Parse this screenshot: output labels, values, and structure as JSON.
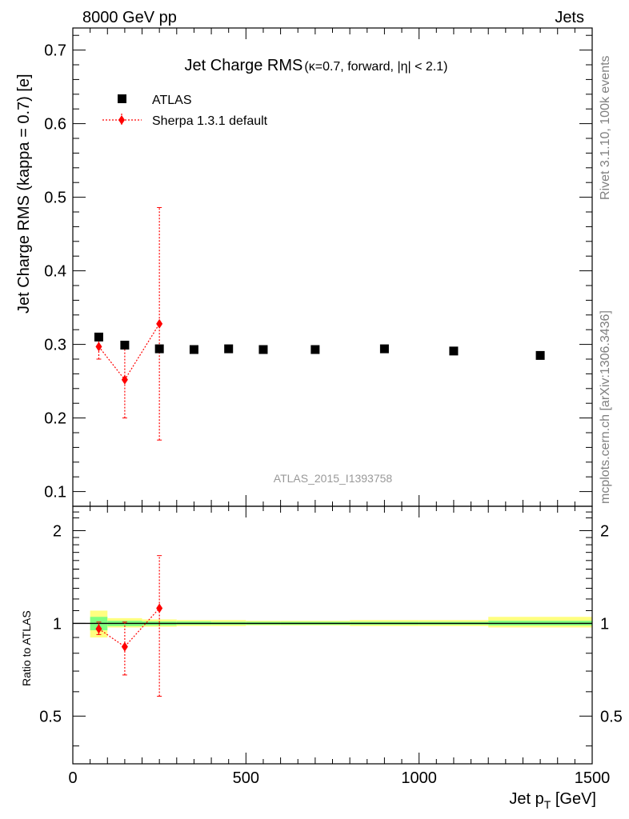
{
  "header": {
    "left": "8000 GeV pp",
    "right": "Jets"
  },
  "side_labels": {
    "rivet": "Rivet 3.1.10,  100k events",
    "mcplots": "mcplots.cern.ch [arXiv:1306.3436]"
  },
  "watermark": "ATLAS_2015_I1393758",
  "colors": {
    "data": "#000000",
    "mc": "#ff0000",
    "band_inner": "#80ff80",
    "band_outer": "#ffff80"
  },
  "chart_data": [
    {
      "type": "scatter",
      "title_main": "Jet Charge RMS",
      "title_sub": "(κ=0.7, forward, |η| < 2.1)",
      "ylabel": "Jet Charge RMS (kappa = 0.7) [e]",
      "xlim": [
        0,
        1500
      ],
      "ylim": [
        0.08,
        0.73
      ],
      "y_ticks": [
        "0.1",
        "0.2",
        "0.3",
        "0.4",
        "0.5",
        "0.6",
        "0.7"
      ],
      "legend_position": "top-left",
      "series": [
        {
          "name": "ATLAS",
          "marker": "square",
          "x": [
            75,
            150,
            250,
            350,
            450,
            550,
            700,
            900,
            1100,
            1350
          ],
          "y": [
            0.31,
            0.299,
            0.294,
            0.293,
            0.294,
            0.293,
            0.293,
            0.294,
            0.291,
            0.285
          ]
        },
        {
          "name": "Sherpa 1.3.1 default",
          "marker": "diamond",
          "line": "dotted",
          "x": [
            75,
            150,
            250
          ],
          "y": [
            0.297,
            0.252,
            0.328
          ],
          "yerr_low": [
            0.28,
            0.2,
            0.17
          ],
          "yerr_high": [
            0.312,
            0.303,
            0.486
          ]
        }
      ]
    },
    {
      "type": "scatter",
      "ylabel": "Ratio to ATLAS",
      "xlabel": "Jet p_T [GeV]",
      "xlim": [
        0,
        1500
      ],
      "ylim": [
        0.35,
        2.4
      ],
      "y_ticks": [
        "0.5",
        "1",
        "2"
      ],
      "x_ticks": [
        "0",
        "500",
        "1000",
        "1500"
      ],
      "log_y": true,
      "bands": [
        {
          "x0": 50,
          "x1": 100,
          "inner": [
            0.95,
            1.05
          ],
          "outer": [
            0.9,
            1.1
          ]
        },
        {
          "x0": 100,
          "x1": 200,
          "inner": [
            0.98,
            1.02
          ],
          "outer": [
            0.97,
            1.04
          ]
        },
        {
          "x0": 200,
          "x1": 300,
          "inner": [
            0.985,
            1.015
          ],
          "outer": [
            0.975,
            1.03
          ]
        },
        {
          "x0": 300,
          "x1": 400,
          "inner": [
            0.99,
            1.015
          ],
          "outer": [
            0.98,
            1.025
          ]
        },
        {
          "x0": 400,
          "x1": 500,
          "inner": [
            0.99,
            1.012
          ],
          "outer": [
            0.98,
            1.025
          ]
        },
        {
          "x0": 500,
          "x1": 600,
          "inner": [
            0.99,
            1.012
          ],
          "outer": [
            0.985,
            1.02
          ]
        },
        {
          "x0": 600,
          "x1": 800,
          "inner": [
            0.99,
            1.012
          ],
          "outer": [
            0.985,
            1.02
          ]
        },
        {
          "x0": 800,
          "x1": 1000,
          "inner": [
            0.99,
            1.012
          ],
          "outer": [
            0.98,
            1.025
          ]
        },
        {
          "x0": 1000,
          "x1": 1200,
          "inner": [
            0.99,
            1.012
          ],
          "outer": [
            0.98,
            1.025
          ]
        },
        {
          "x0": 1200,
          "x1": 1500,
          "inner": [
            0.985,
            1.02
          ],
          "outer": [
            0.97,
            1.05
          ]
        }
      ],
      "series": [
        {
          "name": "Sherpa 1.3.1 default",
          "x": [
            75,
            150,
            250
          ],
          "y": [
            0.96,
            0.84,
            1.12
          ],
          "yerr_low": [
            0.92,
            0.68,
            0.58
          ],
          "yerr_high": [
            1.01,
            1.01,
            1.66
          ]
        }
      ]
    }
  ]
}
